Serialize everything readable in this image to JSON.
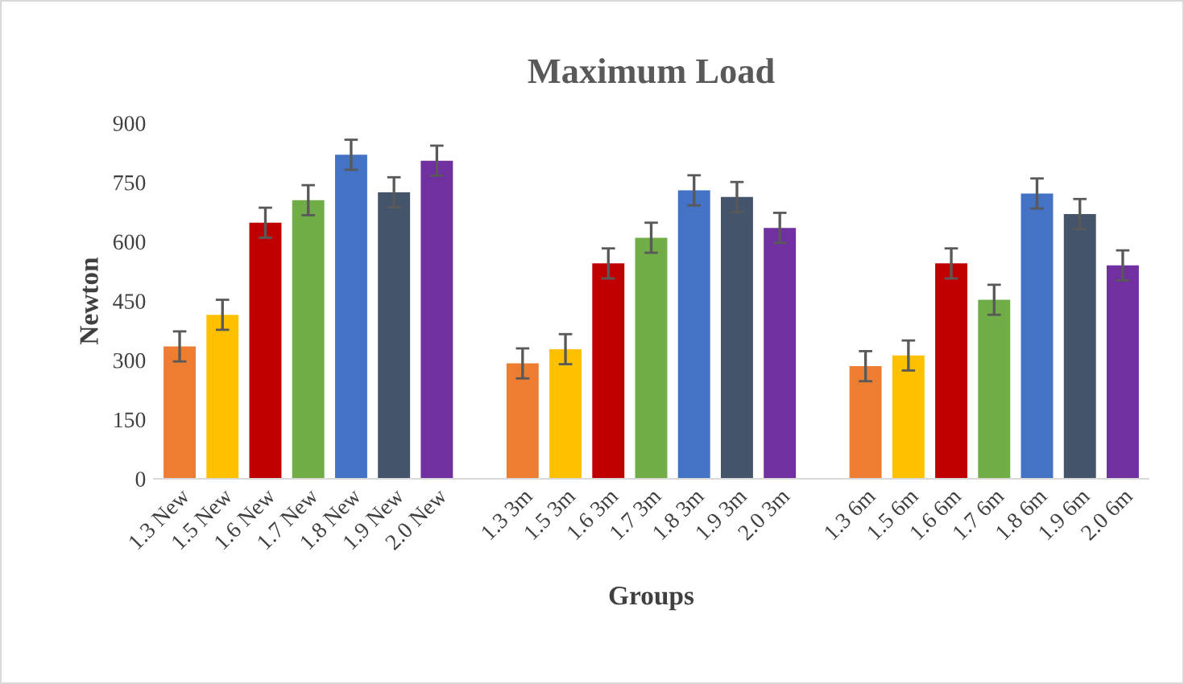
{
  "chart_data": {
    "type": "bar",
    "title": "Maximum Load",
    "xlabel": "Groups",
    "ylabel": "Newton",
    "categories": [
      "1.3 New",
      "1.5 New",
      "1.6 New",
      "1.7 New",
      "1.8 New",
      "1.9 New",
      "2.0 New",
      null,
      "1.3 3m",
      "1.5 3m",
      "1.6 3m",
      "1.7 3m",
      "1.8 3m",
      "1.9 3m",
      "2.0 3m",
      null,
      "1.3 6m",
      "1.5 6m",
      "1.6 6m",
      "1.7 6m",
      "1.8 6m",
      "1.9 6m",
      "2.0 6m"
    ],
    "values": [
      335,
      415,
      648,
      705,
      820,
      725,
      805,
      null,
      292,
      328,
      545,
      610,
      730,
      713,
      635,
      null,
      285,
      312,
      545,
      453,
      722,
      670,
      540
    ],
    "errors": [
      38,
      38,
      38,
      38,
      38,
      38,
      38,
      null,
      38,
      38,
      38,
      38,
      38,
      38,
      38,
      null,
      38,
      38,
      38,
      38,
      38,
      38,
      38
    ],
    "colors": [
      "#ed7d31",
      "#ffc000",
      "#c00000",
      "#70ad47",
      "#4472c4",
      "#44546a",
      "#7030a0",
      "#ffffff",
      "#ed7d31",
      "#ffc000",
      "#c00000",
      "#70ad47",
      "#4472c4",
      "#44546a",
      "#7030a0",
      "#ffffff",
      "#ed7d31",
      "#ffc000",
      "#c00000",
      "#70ad47",
      "#4472c4",
      "#44546a",
      "#7030a0"
    ],
    "ylim": [
      0,
      900
    ],
    "yticks": [
      0,
      150,
      300,
      450,
      600,
      750,
      900
    ],
    "grid": false
  }
}
